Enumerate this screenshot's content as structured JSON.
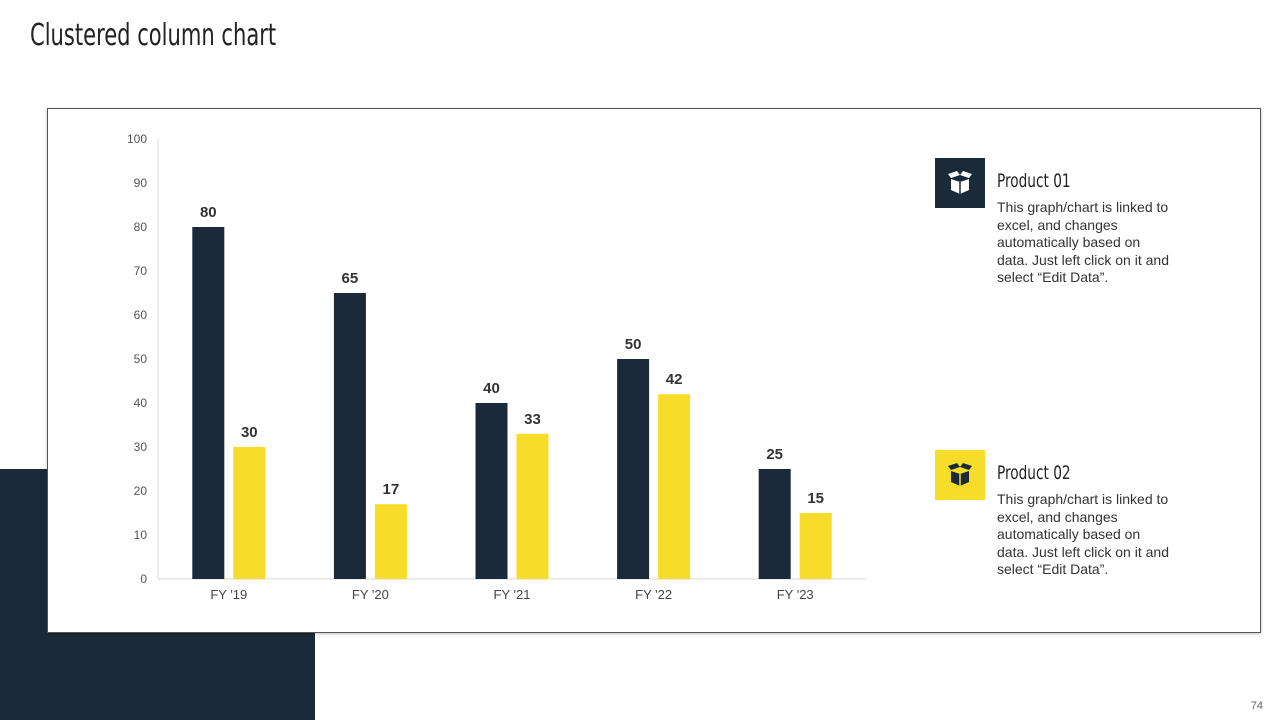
{
  "slide": {
    "title": "Clustered column chart",
    "page_number": "74"
  },
  "colors": {
    "navy": "#1a2a38",
    "yellow": "#f7dc2a"
  },
  "legend": [
    {
      "title": "Product 01",
      "description": "This graph/chart is linked to excel, and changes automatically based on data. Just left click on it and select “Edit Data”.",
      "icon": "open-box-icon",
      "color": "#1a2a38"
    },
    {
      "title": "Product 02",
      "description": "This graph/chart is linked to excel, and changes automatically based on data. Just left click on it and select “Edit Data”.",
      "icon": "open-box-icon",
      "color": "#f7dc2a"
    }
  ],
  "chart_data": {
    "type": "bar",
    "title": "",
    "xlabel": "",
    "ylabel": "",
    "categories": [
      "FY '19",
      "FY '20",
      "FY '21",
      "FY '22",
      "FY '23"
    ],
    "series": [
      {
        "name": "Product 01",
        "values": [
          80,
          65,
          40,
          50,
          25
        ],
        "color": "#1a2a38"
      },
      {
        "name": "Product 02",
        "values": [
          30,
          17,
          33,
          42,
          15
        ],
        "color": "#f7dc2a"
      }
    ],
    "ylim": [
      0,
      100
    ],
    "yticks": [
      0,
      10,
      20,
      30,
      40,
      50,
      60,
      70,
      80,
      90,
      100
    ],
    "grid": false,
    "data_labels": true,
    "legend_position": "right"
  }
}
